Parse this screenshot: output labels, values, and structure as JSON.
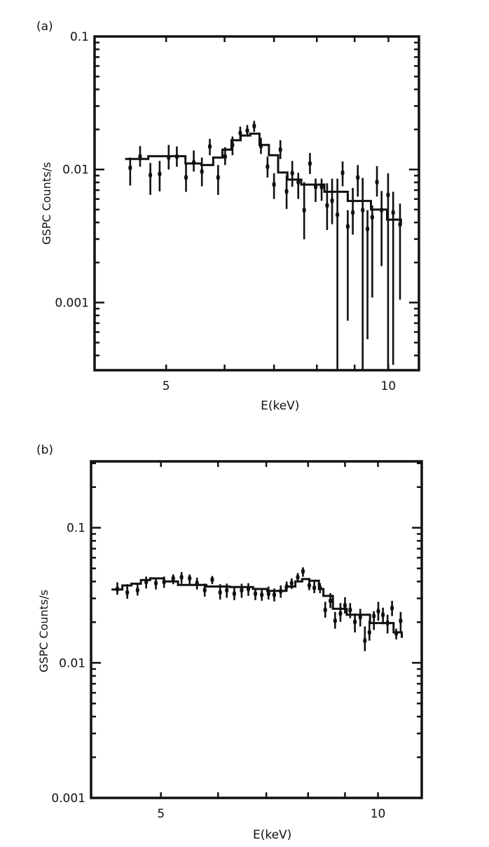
{
  "chart_data": [
    {
      "type": "scatter",
      "panel_label": "(a)",
      "xlabel": "E(keV)",
      "ylabel": "GSPC Counts/s",
      "xscale": "log",
      "yscale": "log",
      "xlim": [
        4.0,
        11.0
      ],
      "ylim": [
        0.00031,
        0.1
      ],
      "xticks": [
        5,
        6,
        7,
        8,
        9,
        10
      ],
      "xtick_labels": [
        "5",
        "10"
      ],
      "xtick_label_values": [
        5,
        10
      ],
      "ytick_labels": [
        "0.1",
        "0.01",
        "0.001"
      ],
      "ytick_label_values": [
        0.1,
        0.01,
        0.001
      ],
      "grid": false,
      "data": {
        "x": [
          4.47,
          4.61,
          4.76,
          4.9,
          5.04,
          5.17,
          5.32,
          5.45,
          5.59,
          5.73,
          5.88,
          6.01,
          6.15,
          6.3,
          6.44,
          6.58,
          6.72,
          6.86,
          7.0,
          7.14,
          7.28,
          7.41,
          7.55,
          7.69,
          7.83,
          7.97,
          8.12,
          8.26,
          8.39,
          8.53,
          8.67,
          8.81,
          8.95,
          9.09,
          9.23,
          9.37,
          9.51,
          9.65,
          9.79,
          9.99,
          10.15,
          10.37
        ],
        "y": [
          0.0103,
          0.0125,
          0.00908,
          0.00926,
          0.0123,
          0.0125,
          0.00871,
          0.0113,
          0.00965,
          0.0149,
          0.00871,
          0.0125,
          0.0153,
          0.0188,
          0.0196,
          0.0212,
          0.015,
          0.0105,
          0.00772,
          0.0141,
          0.00685,
          0.00937,
          0.00804,
          0.00495,
          0.0111,
          0.00741,
          0.00741,
          0.00537,
          0.00582,
          0.00457,
          0.00945,
          0.00373,
          0.00475,
          0.00871,
          0.00495,
          0.00358,
          0.00438,
          0.00804,
          0.00495,
          0.00644,
          0.00475,
          0.00388
        ],
        "y_low": [
          0.00757,
          0.0105,
          0.00644,
          0.00685,
          0.01,
          0.0105,
          0.00679,
          0.00965,
          0.00748,
          0.0128,
          0.00644,
          0.0108,
          0.0128,
          0.0168,
          0.0177,
          0.0192,
          0.0131,
          0.00871,
          0.00601,
          0.012,
          0.00505,
          0.00741,
          0.00601,
          0.00299,
          0.00926,
          0.0057,
          0.00582,
          0.00351,
          0.00388,
          0.00031,
          0.00748,
          0.00073,
          0.00324,
          0.00626,
          0.00031,
          0.00053,
          0.00109,
          0.00626,
          0.00188,
          0.00031,
          0.00034,
          0.00105
        ],
        "y_high": [
          0.0123,
          0.015,
          0.0112,
          0.0116,
          0.0153,
          0.0149,
          0.0112,
          0.0139,
          0.0123,
          0.017,
          0.0108,
          0.0147,
          0.0177,
          0.021,
          0.0216,
          0.0232,
          0.0173,
          0.0125,
          0.00937,
          0.0166,
          0.00908,
          0.0116,
          0.00945,
          0.00804,
          0.0133,
          0.00854,
          0.00854,
          0.00788,
          0.00854,
          0.00854,
          0.0115,
          0.00495,
          0.00727,
          0.0108,
          0.00865,
          0.00495,
          0.00537,
          0.0106,
          0.0069,
          0.00937,
          0.0068,
          0.00554
        ]
      },
      "model": {
        "x": [
          4.4,
          4.73,
          5.31,
          5.58,
          5.79,
          5.96,
          6.13,
          6.31,
          6.5,
          6.69,
          6.89,
          7.09,
          7.3,
          7.62,
          8.19,
          8.81,
          9.47,
          9.96,
          10.4
        ],
        "y": [
          0.012,
          0.0126,
          0.0111,
          0.0108,
          0.0123,
          0.0141,
          0.0166,
          0.018,
          0.0186,
          0.0153,
          0.0128,
          0.0095,
          0.0084,
          0.0077,
          0.0068,
          0.0058,
          0.005,
          0.0042,
          0.0038
        ]
      }
    },
    {
      "type": "scatter",
      "panel_label": "(b)",
      "xlabel": "E(keV)",
      "ylabel": "GSPC Counts/s",
      "xscale": "log",
      "yscale": "log",
      "xlim": [
        4.0,
        11.5
      ],
      "ylim": [
        0.001,
        0.31
      ],
      "xticks": [
        5,
        6,
        7,
        8,
        9,
        10
      ],
      "xtick_labels": [
        "5",
        "10"
      ],
      "xtick_label_values": [
        5,
        10
      ],
      "ytick_labels": [
        "0.1",
        "0.01",
        "0.001"
      ],
      "ytick_label_values": [
        0.1,
        0.01,
        0.001
      ],
      "grid": false,
      "data": {
        "x": [
          4.35,
          4.49,
          4.64,
          4.77,
          4.92,
          5.05,
          5.2,
          5.34,
          5.48,
          5.61,
          5.75,
          5.89,
          6.04,
          6.17,
          6.32,
          6.47,
          6.61,
          6.76,
          6.9,
          7.05,
          7.18,
          7.33,
          7.47,
          7.59,
          7.74,
          7.87,
          8.03,
          8.16,
          8.31,
          8.45,
          8.59,
          8.72,
          8.87,
          9.0,
          9.15,
          9.29,
          9.45,
          9.59,
          9.73,
          9.87,
          10.01,
          10.16,
          10.31,
          10.46,
          10.6,
          10.75
        ],
        "y": [
          0.0352,
          0.0332,
          0.0345,
          0.0397,
          0.0389,
          0.0397,
          0.0422,
          0.043,
          0.0422,
          0.0389,
          0.0345,
          0.0413,
          0.0332,
          0.0345,
          0.0325,
          0.0345,
          0.0352,
          0.0325,
          0.0319,
          0.0325,
          0.0319,
          0.0339,
          0.0367,
          0.0389,
          0.043,
          0.0475,
          0.0374,
          0.0359,
          0.0359,
          0.0246,
          0.0288,
          0.0205,
          0.0232,
          0.0266,
          0.0246,
          0.0201,
          0.0218,
          0.0146,
          0.0168,
          0.0222,
          0.0241,
          0.0227,
          0.0197,
          0.0254,
          0.0165,
          0.0205
        ],
        "y_low": [
          0.0319,
          0.0298,
          0.0315,
          0.0355,
          0.0349,
          0.0359,
          0.0382,
          0.0385,
          0.0382,
          0.0349,
          0.0309,
          0.0382,
          0.0294,
          0.0303,
          0.0291,
          0.0303,
          0.0313,
          0.0291,
          0.0288,
          0.0294,
          0.0285,
          0.0303,
          0.0336,
          0.0352,
          0.0397,
          0.0434,
          0.0345,
          0.0328,
          0.0328,
          0.0216,
          0.0254,
          0.0179,
          0.0201,
          0.0232,
          0.0214,
          0.0168,
          0.0186,
          0.0122,
          0.0146,
          0.0175,
          0.0205,
          0.0193,
          0.0165,
          0.0222,
          0.0149,
          0.0168
        ],
        "y_high": [
          0.0394,
          0.0382,
          0.0389,
          0.0435,
          0.0427,
          0.0435,
          0.0451,
          0.047,
          0.0451,
          0.0427,
          0.0386,
          0.0439,
          0.0382,
          0.0386,
          0.0367,
          0.0385,
          0.0389,
          0.0359,
          0.0355,
          0.0367,
          0.0355,
          0.0374,
          0.04,
          0.0422,
          0.0462,
          0.0509,
          0.0413,
          0.0405,
          0.0389,
          0.0283,
          0.0328,
          0.0238,
          0.0277,
          0.0306,
          0.0277,
          0.0232,
          0.0251,
          0.0186,
          0.0205,
          0.0241,
          0.0283,
          0.0256,
          0.0227,
          0.0288,
          0.0179,
          0.0238
        ]
      },
      "model": {
        "x": [
          4.27,
          4.42,
          4.55,
          4.69,
          4.83,
          5.05,
          5.28,
          5.78,
          6.23,
          6.71,
          7.02,
          7.23,
          7.45,
          7.68,
          7.85,
          8.03,
          8.28,
          8.4,
          8.66,
          9.05,
          9.75,
          10.51,
          10.79
        ],
        "y": [
          0.0349,
          0.0374,
          0.0385,
          0.041,
          0.0422,
          0.04,
          0.0377,
          0.0367,
          0.0364,
          0.0352,
          0.0341,
          0.0341,
          0.0367,
          0.04,
          0.0417,
          0.0405,
          0.0352,
          0.0313,
          0.0251,
          0.0227,
          0.0197,
          0.0168,
          0.0153
        ]
      }
    }
  ]
}
